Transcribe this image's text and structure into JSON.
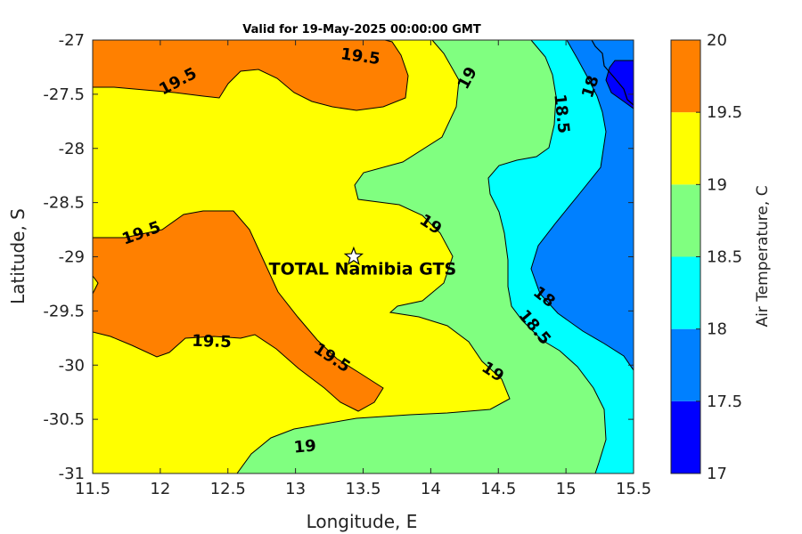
{
  "chart_data": {
    "type": "contour",
    "title": "Valid for 19-May-2025 00:00:00 GMT",
    "xlabel": "Longitude, E",
    "ylabel": "Latitude, S",
    "xlim": [
      11.5,
      15.5
    ],
    "ylim": [
      -31,
      -27
    ],
    "xticks": [
      "11.5",
      "12",
      "12.5",
      "13",
      "13.5",
      "14",
      "14.5",
      "15",
      "15.5"
    ],
    "yticks": [
      "-27",
      "-27.5",
      "-28",
      "-28.5",
      "-29",
      "-29.5",
      "-30",
      "-30.5",
      "-31"
    ],
    "colorbar": {
      "label": "Air Temperature, C",
      "levels": [
        17,
        17.5,
        18,
        18.5,
        19,
        19.5,
        20
      ],
      "tick_labels": [
        "17",
        "17.5",
        "18",
        "18.5",
        "19",
        "19.5",
        "20"
      ],
      "colors": [
        "#0000ff",
        "#0080ff",
        "#00ffff",
        "#80ff80",
        "#ffff00",
        "#ff8000",
        "#ff0000"
      ]
    },
    "contour_labels": [
      {
        "text": "19.5",
        "lon": 13.48,
        "lat": -27.15
      },
      {
        "text": "19.5",
        "lon": 12.13,
        "lat": -27.38
      },
      {
        "text": "19",
        "lon": 14.27,
        "lat": -27.35
      },
      {
        "text": "18",
        "lon": 15.18,
        "lat": -27.43
      },
      {
        "text": "18.5",
        "lon": 14.97,
        "lat": -27.68
      },
      {
        "text": "19.5",
        "lon": 11.86,
        "lat": -28.78
      },
      {
        "text": "19",
        "lon": 14.0,
        "lat": -28.7
      },
      {
        "text": "18",
        "lon": 14.84,
        "lat": -29.37
      },
      {
        "text": "18.5",
        "lon": 14.77,
        "lat": -29.65
      },
      {
        "text": "19.5",
        "lon": 12.38,
        "lat": -29.78
      },
      {
        "text": "19.5",
        "lon": 13.27,
        "lat": -29.93
      },
      {
        "text": "19",
        "lon": 14.46,
        "lat": -30.06
      },
      {
        "text": "19",
        "lon": 13.07,
        "lat": -30.75
      }
    ],
    "site": {
      "name": "TOTAL Namibia GTS",
      "lon": 13.43,
      "lat": -29.0,
      "marker": "star"
    }
  }
}
